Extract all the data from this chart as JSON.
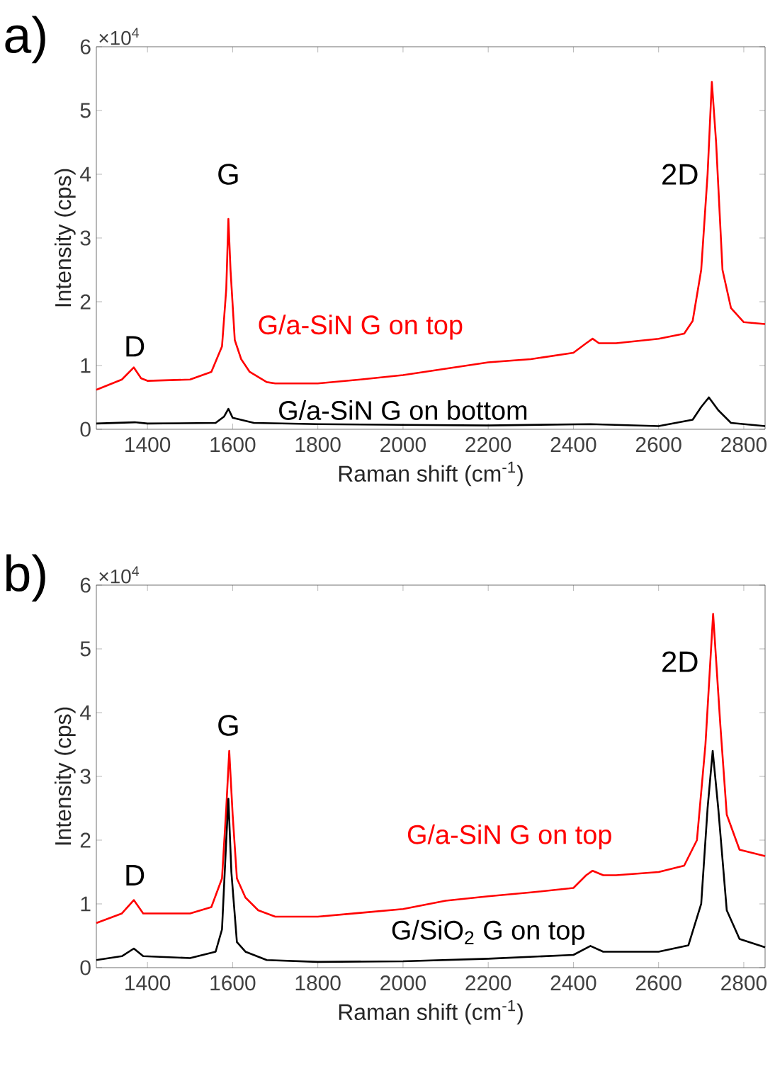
{
  "chart_data": [
    {
      "type": "line",
      "title": "a)",
      "xlabel": "Raman shift (cm$^{-1}$)",
      "ylabel": "Intensity (cps)",
      "xlim": [
        1280,
        2850
      ],
      "ylim": [
        0,
        6
      ],
      "xticks": [
        1400,
        1600,
        1800,
        2000,
        2200,
        2400,
        2600,
        2800
      ],
      "yticks": [
        0,
        1,
        2,
        3,
        4,
        5,
        6
      ],
      "annotations": [
        "×10$^{4}$",
        "D",
        "G",
        "2D"
      ],
      "series": [
        {
          "name": "G/a-SiN G on top",
          "color": "#ff0000",
          "x": [
            1280,
            1340,
            1368,
            1385,
            1400,
            1500,
            1550,
            1575,
            1585,
            1590,
            1595,
            1605,
            1620,
            1640,
            1680,
            1700,
            1800,
            1900,
            2000,
            2100,
            2200,
            2300,
            2400,
            2430,
            2445,
            2460,
            2500,
            2600,
            2660,
            2680,
            2700,
            2715,
            2725,
            2735,
            2750,
            2770,
            2800,
            2850
          ],
          "values": [
            0.62,
            0.78,
            0.97,
            0.8,
            0.76,
            0.78,
            0.9,
            1.3,
            2.2,
            3.3,
            2.5,
            1.4,
            1.1,
            0.9,
            0.74,
            0.72,
            0.72,
            0.78,
            0.85,
            0.95,
            1.05,
            1.1,
            1.2,
            1.35,
            1.42,
            1.35,
            1.35,
            1.42,
            1.5,
            1.7,
            2.5,
            4.0,
            5.45,
            4.5,
            2.5,
            1.9,
            1.68,
            1.65
          ]
        },
        {
          "name": "G/a-SiN G on bottom",
          "color": "#000000",
          "x": [
            1280,
            1370,
            1400,
            1560,
            1580,
            1590,
            1600,
            1650,
            1800,
            2000,
            2200,
            2440,
            2600,
            2680,
            2700,
            2718,
            2740,
            2770,
            2850
          ],
          "values": [
            0.09,
            0.11,
            0.09,
            0.1,
            0.2,
            0.32,
            0.18,
            0.1,
            0.08,
            0.07,
            0.06,
            0.08,
            0.05,
            0.15,
            0.35,
            0.5,
            0.3,
            0.1,
            0.05
          ]
        }
      ]
    },
    {
      "type": "line",
      "title": "b)",
      "xlabel": "Raman shift (cm$^{-1}$)",
      "ylabel": "Intensity (cps)",
      "xlim": [
        1280,
        2850
      ],
      "ylim": [
        0,
        6
      ],
      "xticks": [
        1400,
        1600,
        1800,
        2000,
        2200,
        2400,
        2600,
        2800
      ],
      "yticks": [
        0,
        1,
        2,
        3,
        4,
        5,
        6
      ],
      "annotations": [
        "×10$^{4}$",
        "D",
        "G",
        "2D"
      ],
      "series": [
        {
          "name": "G/a-SiN G on top",
          "color": "#ff0000",
          "x": [
            1280,
            1340,
            1368,
            1390,
            1500,
            1550,
            1575,
            1585,
            1592,
            1600,
            1610,
            1630,
            1660,
            1700,
            1800,
            1900,
            2000,
            2100,
            2200,
            2300,
            2400,
            2430,
            2445,
            2470,
            2500,
            2600,
            2660,
            2690,
            2710,
            2728,
            2745,
            2760,
            2790,
            2850
          ],
          "values": [
            0.7,
            0.85,
            1.06,
            0.85,
            0.85,
            0.95,
            1.4,
            2.5,
            3.4,
            2.4,
            1.4,
            1.1,
            0.9,
            0.8,
            0.8,
            0.86,
            0.92,
            1.05,
            1.12,
            1.18,
            1.25,
            1.45,
            1.52,
            1.45,
            1.45,
            1.5,
            1.6,
            2.0,
            3.5,
            5.55,
            3.8,
            2.4,
            1.85,
            1.75
          ]
        },
        {
          "name": "G/SiO$_{2}$ G on top",
          "color": "#000000",
          "x": [
            1280,
            1340,
            1368,
            1390,
            1500,
            1560,
            1575,
            1585,
            1590,
            1597,
            1610,
            1630,
            1680,
            1800,
            2000,
            2200,
            2400,
            2440,
            2470,
            2600,
            2670,
            2700,
            2715,
            2727,
            2740,
            2760,
            2790,
            2850
          ],
          "values": [
            0.12,
            0.18,
            0.3,
            0.18,
            0.15,
            0.25,
            0.6,
            2.0,
            2.65,
            1.5,
            0.4,
            0.25,
            0.12,
            0.09,
            0.1,
            0.14,
            0.2,
            0.34,
            0.25,
            0.25,
            0.35,
            1.0,
            2.5,
            3.4,
            2.5,
            0.9,
            0.45,
            0.32
          ]
        }
      ]
    }
  ]
}
